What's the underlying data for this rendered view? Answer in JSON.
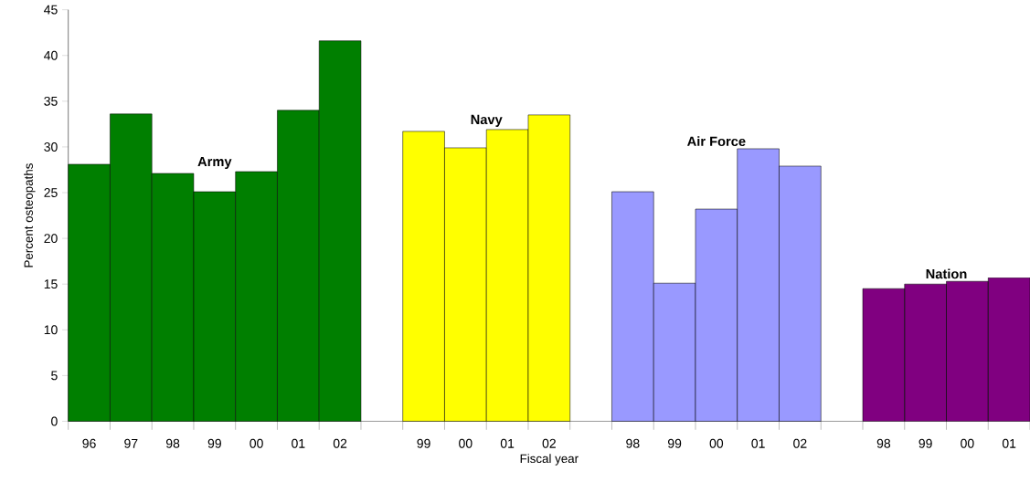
{
  "chart_data": {
    "type": "bar",
    "xlabel": "Fiscal year",
    "ylabel": "Percent osteopaths",
    "categories": [
      "96",
      "97",
      "98",
      "99",
      "00",
      "01",
      "02",
      null,
      "99",
      "00",
      "01",
      "02",
      null,
      "98",
      "99",
      "00",
      "01",
      "02",
      null,
      "98",
      "99",
      "00",
      "01"
    ],
    "series": [
      {
        "name": "Army",
        "color": "#007f00",
        "values": [
          28.1,
          33.6,
          27.1,
          25.1,
          27.3,
          34.0,
          41.6,
          null,
          null,
          null,
          null,
          null,
          null,
          null,
          null,
          null,
          null,
          null,
          null,
          null,
          null,
          null,
          null
        ]
      },
      {
        "name": "Navy",
        "color": "#ffff00",
        "values": [
          null,
          null,
          null,
          null,
          null,
          null,
          null,
          null,
          31.7,
          29.9,
          31.9,
          33.5,
          null,
          null,
          null,
          null,
          null,
          null,
          null,
          null,
          null,
          null,
          null
        ]
      },
      {
        "name": "Air Force",
        "color": "#9999ff",
        "values": [
          null,
          null,
          null,
          null,
          null,
          null,
          null,
          null,
          null,
          null,
          null,
          null,
          null,
          25.1,
          15.1,
          23.2,
          29.8,
          27.9,
          null,
          null,
          null,
          null,
          null
        ]
      },
      {
        "name": "Nation",
        "color": "#800080",
        "values": [
          null,
          null,
          null,
          null,
          null,
          null,
          null,
          null,
          null,
          null,
          null,
          null,
          null,
          null,
          null,
          null,
          null,
          null,
          null,
          14.5,
          15.0,
          15.3,
          15.7
        ]
      }
    ],
    "ylim": [
      0,
      45
    ],
    "yticks": [
      0,
      5,
      10,
      15,
      20,
      25,
      30,
      35,
      40,
      45
    ],
    "grid": false
  }
}
